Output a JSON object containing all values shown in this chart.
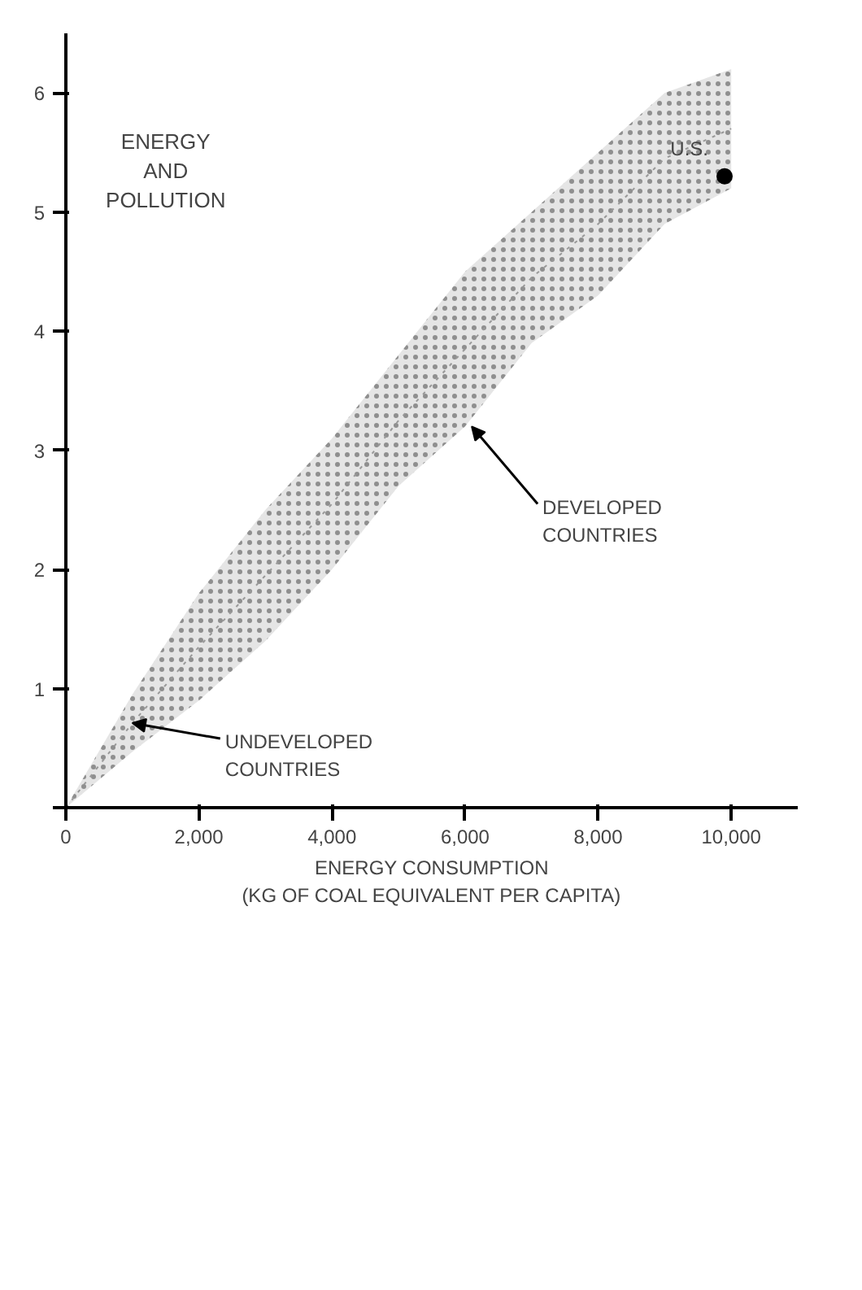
{
  "chart_data": {
    "type": "line",
    "title": "ENERGY\nAND\nPOLLUTION",
    "xlabel": "ENERGY CONSUMPTION\n(KG OF COAL EQUIVALENT PER CAPITA)",
    "xlim": [
      0,
      11000
    ],
    "ylim": [
      0,
      6.5
    ],
    "xticks": [
      {
        "value": 0,
        "label": "0"
      },
      {
        "value": 2000,
        "label": "2,000"
      },
      {
        "value": 4000,
        "label": "4,000"
      },
      {
        "value": 6000,
        "label": "6,000"
      },
      {
        "value": 8000,
        "label": "8,000"
      },
      {
        "value": 10000,
        "label": "10,000"
      }
    ],
    "yticks": [
      {
        "value": 0,
        "label": null
      },
      1,
      2,
      3,
      4,
      5,
      6
    ],
    "grid": false,
    "line_style": "dotted",
    "series": [
      {
        "color": "#999999",
        "x": [
          0,
          1000,
          2000,
          3000,
          4000,
          5000,
          6000,
          7000,
          8000,
          9000,
          10000
        ],
        "values": [
          0,
          0.71,
          1.35,
          1.95,
          2.55,
          3.25,
          3.85,
          4.45,
          4.9,
          5.45,
          5.7
        ],
        "lower": [
          0,
          0.47,
          0.9,
          1.4,
          2.0,
          2.7,
          3.2,
          3.9,
          4.3,
          4.9,
          5.2
        ],
        "upper": [
          0,
          0.95,
          1.8,
          2.5,
          3.1,
          3.8,
          4.5,
          5.0,
          5.5,
          6.0,
          6.2
        ]
      },
      {
        "type": "scatter",
        "color": "#000000",
        "marker": "circle",
        "x": [
          9900
        ],
        "values": [
          5.3
        ]
      }
    ],
    "annotations": [
      {
        "text": "UNDEVELOPED\nCOUNTRIES",
        "x": 1000,
        "y": 0.71
      },
      {
        "text": "DEVELOPED\nCOUNTRIES",
        "x": 6100,
        "y": 3.2
      },
      {
        "text": "U.S.",
        "x": 9900,
        "y": 5.3
      }
    ]
  }
}
